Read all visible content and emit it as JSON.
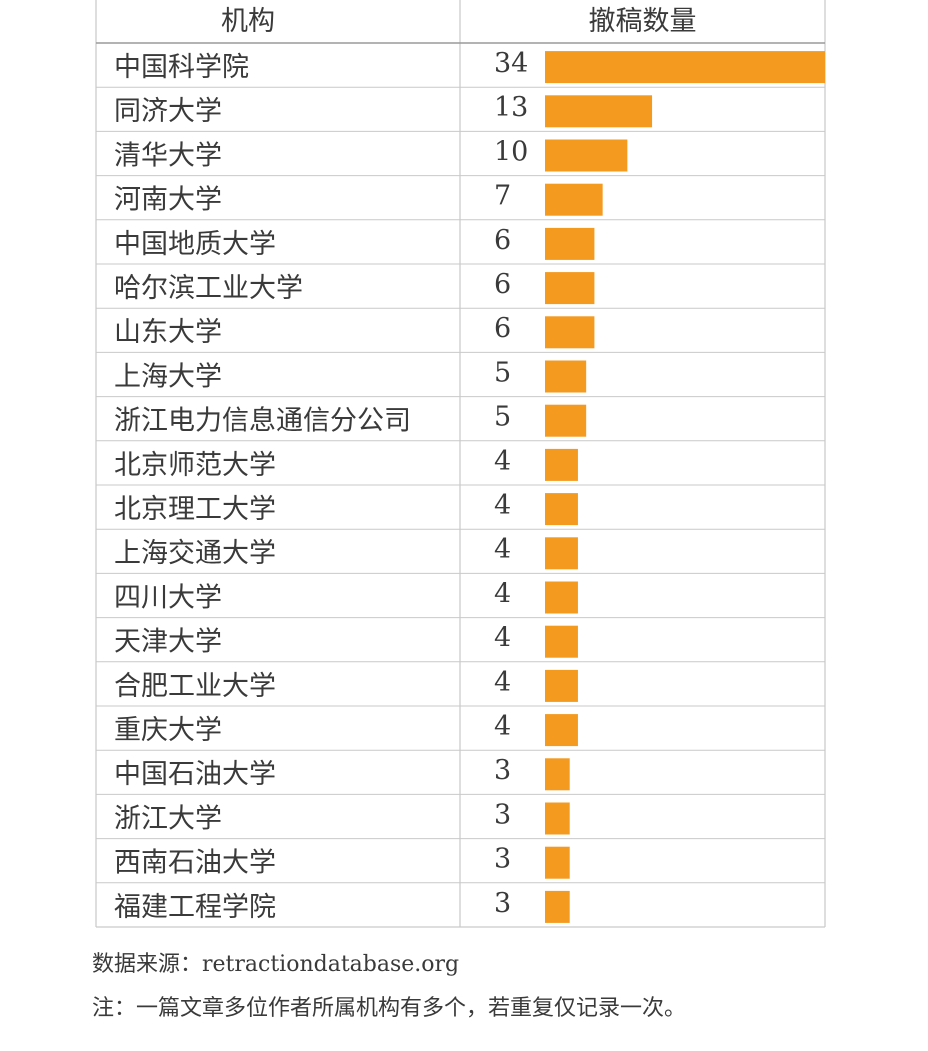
{
  "chart_data": {
    "type": "bar",
    "columns": [
      "机构",
      "撤稿数量"
    ],
    "categories": [
      "中国科学院",
      "同济大学",
      "清华大学",
      "河南大学",
      "中国地质大学",
      "哈尔滨工业大学",
      "山东大学",
      "上海大学",
      "浙江电力信息通信分公司",
      "北京师范大学",
      "北京理工大学",
      "上海交通大学",
      "四川大学",
      "天津大学",
      "合肥工业大学",
      "重庆大学",
      "中国石油大学",
      "浙江大学",
      "西南石油大学",
      "福建工程学院"
    ],
    "values": [
      34,
      13,
      10,
      7,
      6,
      6,
      6,
      5,
      5,
      4,
      4,
      4,
      4,
      4,
      4,
      4,
      3,
      3,
      3,
      3
    ],
    "xlim": [
      0,
      34
    ],
    "bar_color": "#f39a1f",
    "grid_color": "#c9c9c9"
  },
  "footer": {
    "source": "数据来源：retractiondatabase.org",
    "note": "注：一篇文章多位作者所属机构有多个，若重复仅记录一次。"
  }
}
